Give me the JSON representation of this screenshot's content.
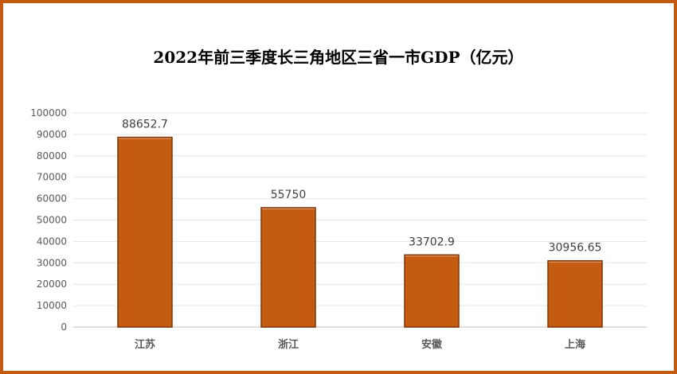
{
  "chart_data": {
    "type": "bar",
    "title": "2022年前三季度长三角地区三省一市GDP（亿元）",
    "categories": [
      "江苏",
      "浙江",
      "安徽",
      "上海"
    ],
    "values": [
      88652.7,
      55750,
      33702.9,
      30956.65
    ],
    "data_labels": [
      "88652.7",
      "55750",
      "33702.9",
      "30956.65"
    ],
    "ylim": [
      0,
      100000
    ],
    "yticks": [
      0,
      10000,
      20000,
      30000,
      40000,
      50000,
      60000,
      70000,
      80000,
      90000,
      100000
    ],
    "xlabel": "",
    "ylabel": "",
    "grid": true,
    "legend": "none",
    "colors": {
      "bar": "#C55A11",
      "bar_edge": "#7F3507",
      "border": "#C55A11",
      "grid": "#E5E5E5"
    }
  }
}
